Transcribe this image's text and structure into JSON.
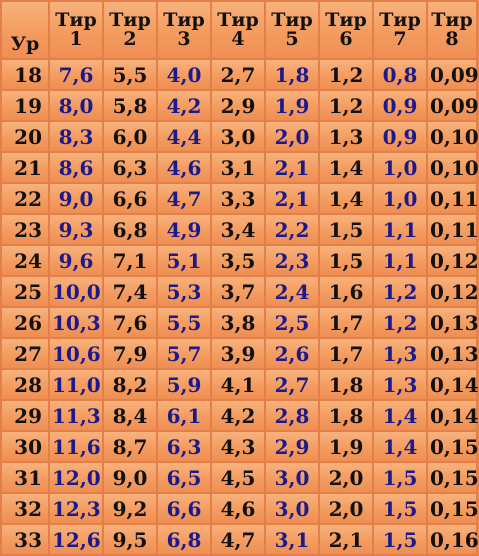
{
  "header": {
    "level": "Ур",
    "tiers": [
      {
        "word": "Тир",
        "num": "1"
      },
      {
        "word": "Тир",
        "num": "2"
      },
      {
        "word": "Тир",
        "num": "3"
      },
      {
        "word": "Тир",
        "num": "4"
      },
      {
        "word": "Тир",
        "num": "5"
      },
      {
        "word": "Тир",
        "num": "6"
      },
      {
        "word": "Тир",
        "num": "7"
      },
      {
        "word": "Тир",
        "num": "8"
      }
    ]
  },
  "colors": {
    "blue_text": "#1a1a8c",
    "black_text": "#111111",
    "cell_bg": "#f49c60"
  },
  "column_colors": [
    "blue",
    "black",
    "blue",
    "black",
    "blue",
    "black",
    "blue",
    "black"
  ],
  "rows": [
    {
      "level": "18",
      "values": [
        "7,6",
        "5,5",
        "4,0",
        "2,7",
        "1,8",
        "1,2",
        "0,8",
        "0,09"
      ]
    },
    {
      "level": "19",
      "values": [
        "8,0",
        "5,8",
        "4,2",
        "2,9",
        "1,9",
        "1,2",
        "0,9",
        "0,09"
      ]
    },
    {
      "level": "20",
      "values": [
        "8,3",
        "6,0",
        "4,4",
        "3,0",
        "2,0",
        "1,3",
        "0,9",
        "0,10"
      ]
    },
    {
      "level": "21",
      "values": [
        "8,6",
        "6,3",
        "4,6",
        "3,1",
        "2,1",
        "1,4",
        "1,0",
        "0,10"
      ]
    },
    {
      "level": "22",
      "values": [
        "9,0",
        "6,6",
        "4,7",
        "3,3",
        "2,1",
        "1,4",
        "1,0",
        "0,11"
      ]
    },
    {
      "level": "23",
      "values": [
        "9,3",
        "6,8",
        "4,9",
        "3,4",
        "2,2",
        "1,5",
        "1,1",
        "0,11"
      ]
    },
    {
      "level": "24",
      "values": [
        "9,6",
        "7,1",
        "5,1",
        "3,5",
        "2,3",
        "1,5",
        "1,1",
        "0,12"
      ]
    },
    {
      "level": "25",
      "values": [
        "10,0",
        "7,4",
        "5,3",
        "3,7",
        "2,4",
        "1,6",
        "1,2",
        "0,12"
      ]
    },
    {
      "level": "26",
      "values": [
        "10,3",
        "7,6",
        "5,5",
        "3,8",
        "2,5",
        "1,7",
        "1,2",
        "0,13"
      ]
    },
    {
      "level": "27",
      "values": [
        "10,6",
        "7,9",
        "5,7",
        "3,9",
        "2,6",
        "1,7",
        "1,3",
        "0,13"
      ]
    },
    {
      "level": "28",
      "values": [
        "11,0",
        "8,2",
        "5,9",
        "4,1",
        "2,7",
        "1,8",
        "1,3",
        "0,14"
      ]
    },
    {
      "level": "29",
      "values": [
        "11,3",
        "8,4",
        "6,1",
        "4,2",
        "2,8",
        "1,8",
        "1,4",
        "0,14"
      ]
    },
    {
      "level": "30",
      "values": [
        "11,6",
        "8,7",
        "6,3",
        "4,3",
        "2,9",
        "1,9",
        "1,4",
        "0,15"
      ]
    },
    {
      "level": "31",
      "values": [
        "12,0",
        "9,0",
        "6,5",
        "4,5",
        "3,0",
        "2,0",
        "1,5",
        "0,15"
      ]
    },
    {
      "level": "32",
      "values": [
        "12,3",
        "9,2",
        "6,6",
        "4,6",
        "3,0",
        "2,0",
        "1,5",
        "0,15"
      ]
    },
    {
      "level": "33",
      "values": [
        "12,6",
        "9,5",
        "6,8",
        "4,7",
        "3,1",
        "2,1",
        "1,5",
        "0,16"
      ]
    }
  ]
}
